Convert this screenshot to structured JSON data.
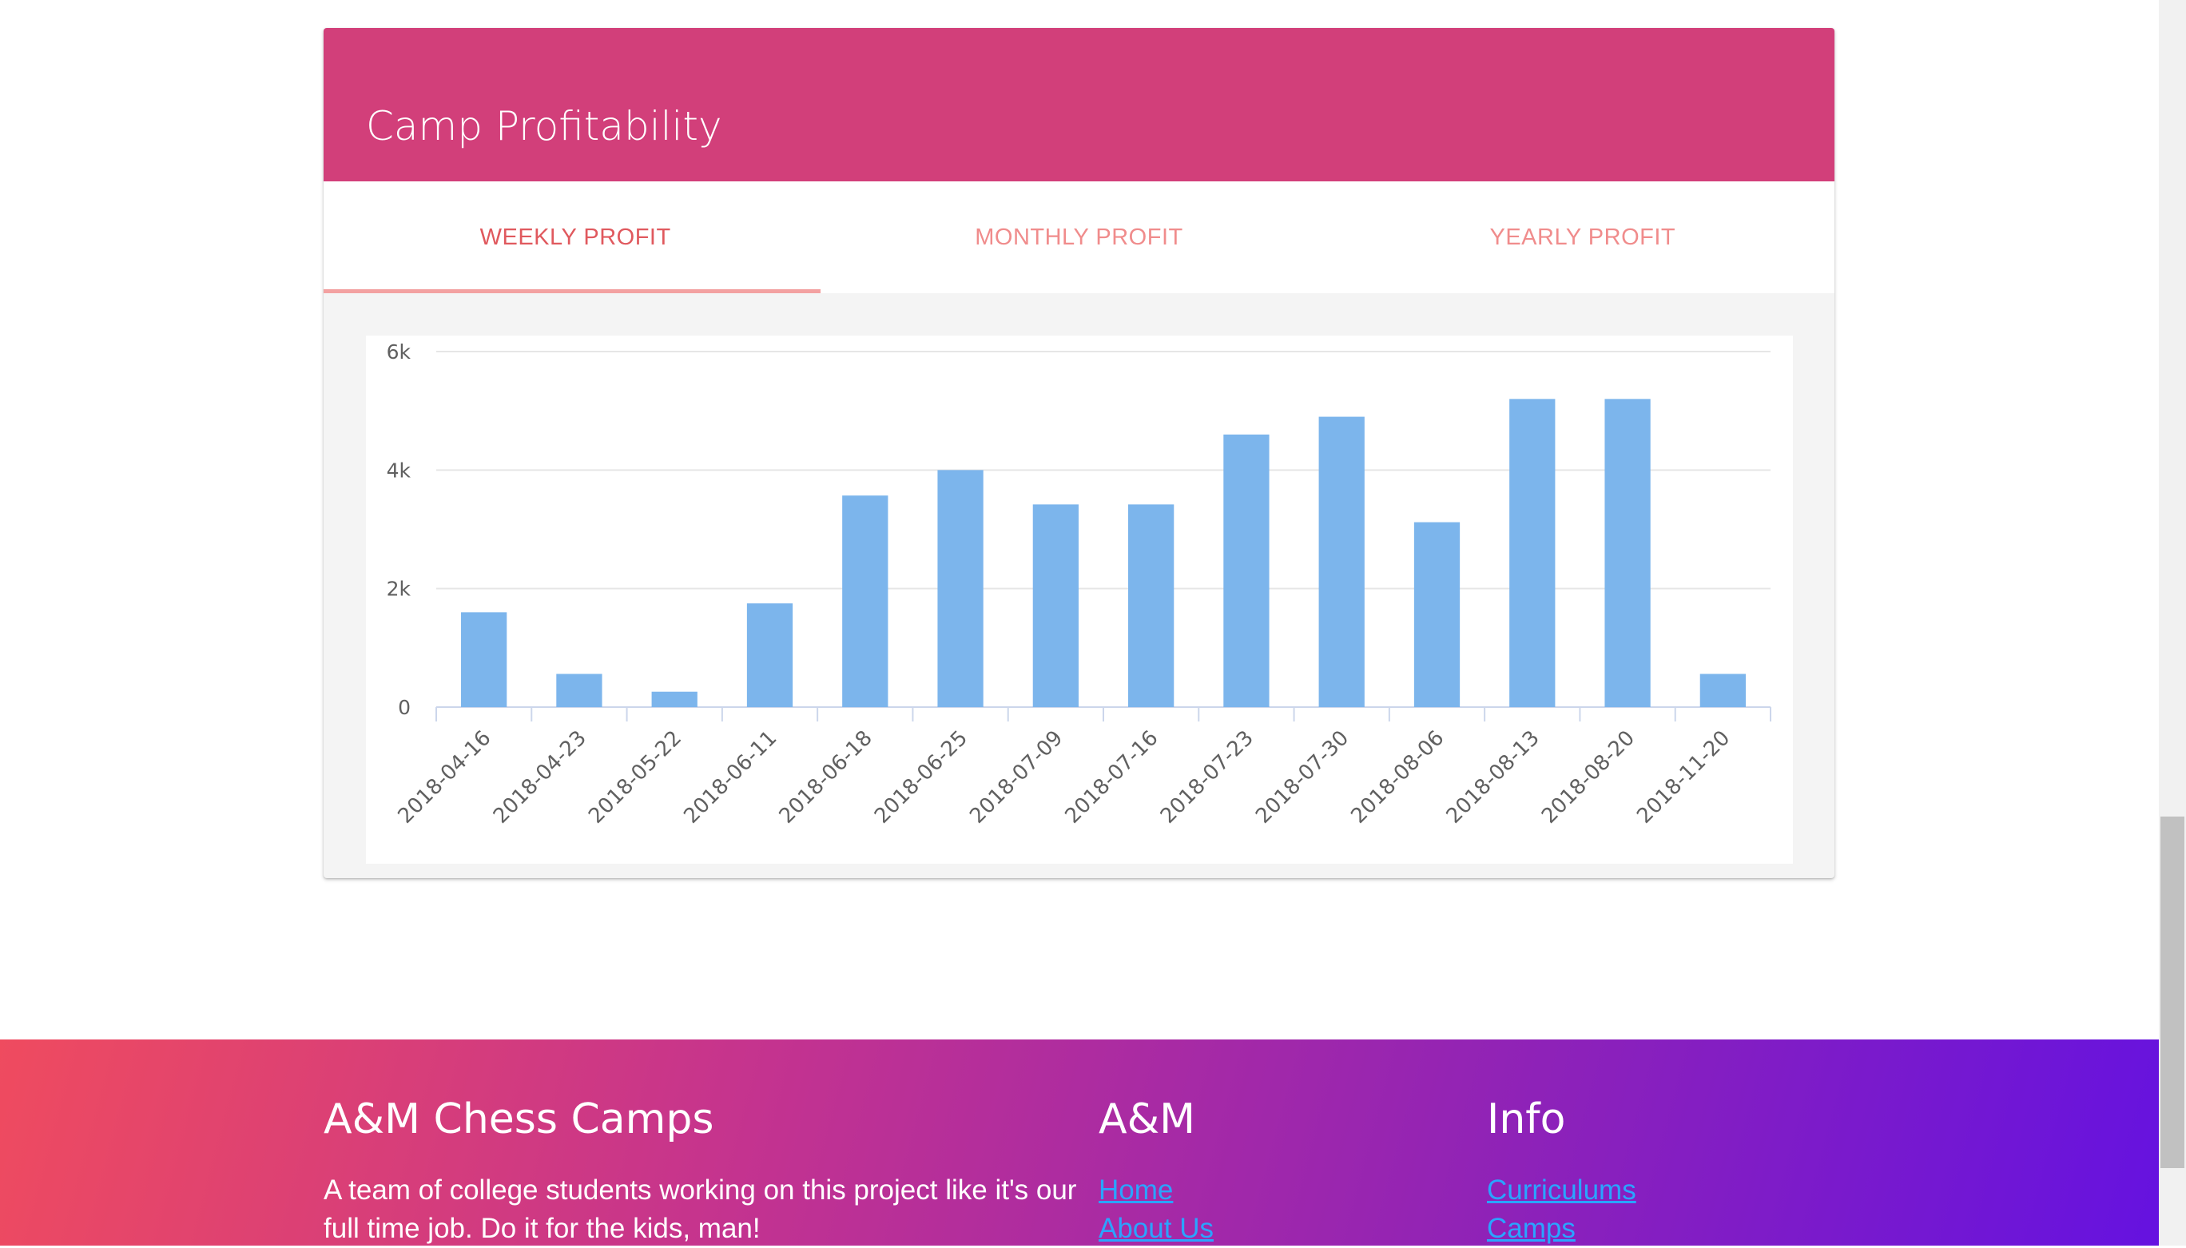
{
  "card": {
    "title": "Camp Profitability",
    "tabs": [
      {
        "label": "WEEKLY PROFIT",
        "active": true
      },
      {
        "label": "MONTHLY PROFIT",
        "active": false
      },
      {
        "label": "YEARLY PROFIT",
        "active": false
      }
    ]
  },
  "chart_data": {
    "type": "bar",
    "title": "",
    "xlabel": "",
    "ylabel": "",
    "categories": [
      "2018-04-16",
      "2018-04-23",
      "2018-05-22",
      "2018-06-11",
      "2018-06-18",
      "2018-06-25",
      "2018-07-09",
      "2018-07-16",
      "2018-07-23",
      "2018-07-30",
      "2018-08-06",
      "2018-08-13",
      "2018-08-20",
      "2018-11-20"
    ],
    "values": [
      1600,
      560,
      260,
      1750,
      3570,
      4000,
      3420,
      3420,
      4600,
      4900,
      3120,
      5200,
      5200,
      560
    ],
    "ylim": [
      0,
      6000
    ],
    "yticks": [
      {
        "value": 0,
        "label": "0"
      },
      {
        "value": 2000,
        "label": "2k"
      },
      {
        "value": 4000,
        "label": "4k"
      },
      {
        "value": 6000,
        "label": "6k"
      }
    ],
    "grid": true,
    "legend": "none",
    "bar_color": "#7cb5ec"
  },
  "footer": {
    "brand_title": "A&M Chess Camps",
    "brand_text_line1": "A team of college students working on this project like it's our",
    "brand_text_line2": "full time job. Do it for the kids, man!",
    "col2_title": "A&M",
    "col2_links": [
      "Home",
      "About Us"
    ],
    "col3_title": "Info",
    "col3_links": [
      "Curriculums",
      "Camps"
    ],
    "link_color": "#2aa4ff"
  }
}
